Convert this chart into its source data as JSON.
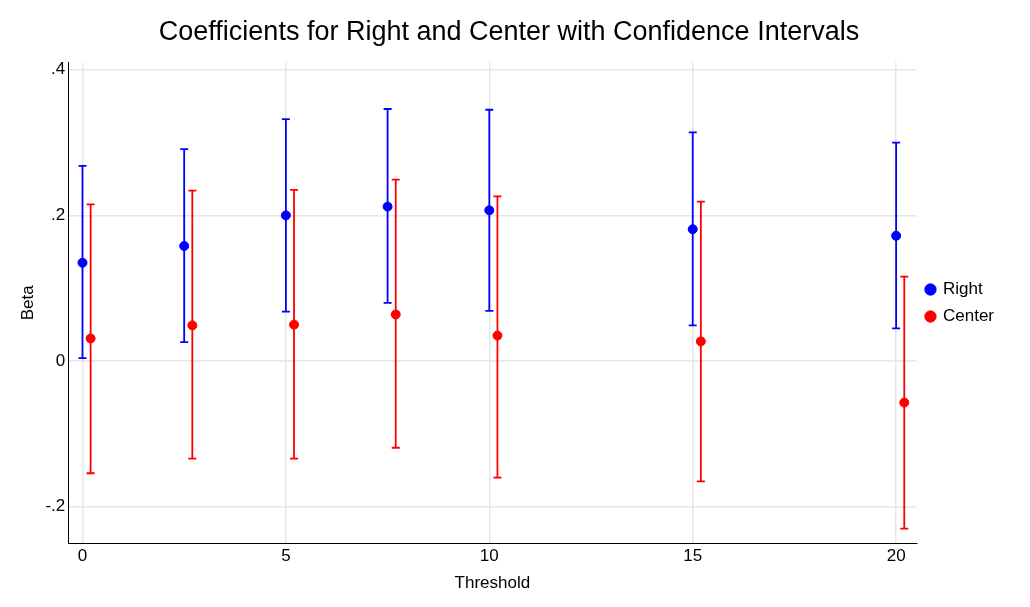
{
  "chart_data": {
    "type": "scatter",
    "title": "Coefficients for Right and Center with Confidence Intervals",
    "xlabel": "Threshold",
    "ylabel": "Beta",
    "series": [
      {
        "name": "Right",
        "color": "#0000ff",
        "x": [
          0,
          2.5,
          5,
          7.5,
          10,
          15,
          20
        ],
        "values": [
          0.135,
          0.158,
          0.2,
          0.212,
          0.207,
          0.181,
          0.172
        ],
        "errors": [
          [
            0.004,
            0.268
          ],
          [
            0.026,
            0.291
          ],
          [
            0.068,
            0.332
          ],
          [
            0.08,
            0.346
          ],
          [
            0.069,
            0.345
          ],
          [
            0.049,
            0.314
          ],
          [
            0.045,
            0.3
          ]
        ]
      },
      {
        "name": "Center",
        "color": "#ff0000",
        "x": [
          0.2,
          2.7,
          5.2,
          7.7,
          10.2,
          15.2,
          20.2
        ],
        "values": [
          0.031,
          0.049,
          0.05,
          0.064,
          0.035,
          0.027,
          -0.057
        ],
        "errors": [
          [
            -0.154,
            0.215
          ],
          [
            -0.134,
            0.234
          ],
          [
            -0.134,
            0.235
          ],
          [
            -0.119,
            0.249
          ],
          [
            -0.16,
            0.226
          ],
          [
            -0.165,
            0.219
          ],
          [
            -0.23,
            0.116
          ]
        ]
      }
    ],
    "xlim": [
      -0.35,
      20.5
    ],
    "xticks": [
      0,
      5,
      10,
      15,
      20
    ],
    "ylim": [
      -0.25,
      0.41
    ],
    "yticks": [
      {
        "value": -0.2,
        "label": "-.2"
      },
      {
        "value": 0,
        "label": "0"
      },
      {
        "value": 0.2,
        "label": ".2"
      },
      {
        "value": 0.4,
        "label": ".4"
      }
    ],
    "grid": true,
    "legend": "right",
    "marker": "circle"
  }
}
